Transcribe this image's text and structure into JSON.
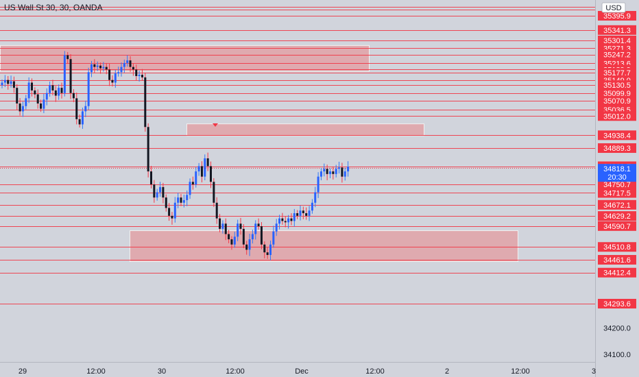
{
  "header": {
    "title": "US Wall St 30, 30, OANDA",
    "currency": "USD"
  },
  "price_tag": {
    "price": "34818.1",
    "countdown": "20:30"
  },
  "chart_data": {
    "type": "candlestick",
    "title": "US Wall St 30, 30, OANDA",
    "currency": "USD",
    "current_price": 34818.1,
    "countdown": "20:30",
    "ylim": [
      34060,
      35440
    ],
    "y_ticks": [
      34200.0,
      34100.0
    ],
    "horizontal_levels": [
      35395.9,
      35341.3,
      35301.4,
      35271.3,
      35247.2,
      35213.6,
      35189.9,
      35177.7,
      35149.0,
      35130.5,
      35099.9,
      35070.9,
      35036.5,
      35012.0,
      34938.4,
      34889.3,
      34819.7,
      34750.7,
      34717.5,
      34672.1,
      34629.2,
      34590.7,
      34510.8,
      34461.6,
      34412.4,
      34293.6
    ],
    "x_labels": [
      "29",
      "12:00",
      "30",
      "12:00",
      "Dec",
      "12:00",
      "2",
      "12:00",
      "3"
    ],
    "zones": [
      {
        "x0": 0,
        "x1": 538,
        "y_top": 35282,
        "y_bot": 35183
      },
      {
        "x0": 272,
        "x1": 618,
        "y_top": 34982,
        "y_bot": 34937
      },
      {
        "x0": 189,
        "x1": 755,
        "y_top": 34573,
        "y_bot": 34455
      }
    ],
    "candles_note": "30-minute OHLC candles read from chart (approximate)"
  }
}
